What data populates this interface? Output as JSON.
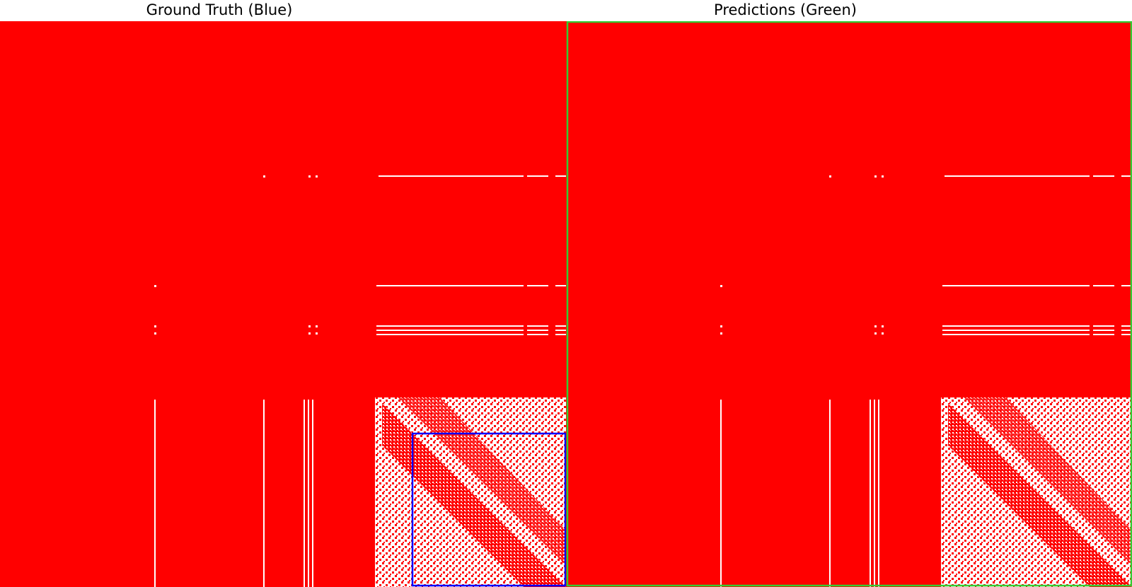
{
  "panels": {
    "left": {
      "title": "Ground Truth (Blue)"
    },
    "right": {
      "title": "Predictions (Green)"
    }
  },
  "colors": {
    "fill": "#ff0000",
    "background": "#ffffff",
    "ground_truth_box": "#0000ff",
    "prediction_box": "#00cc00"
  }
}
